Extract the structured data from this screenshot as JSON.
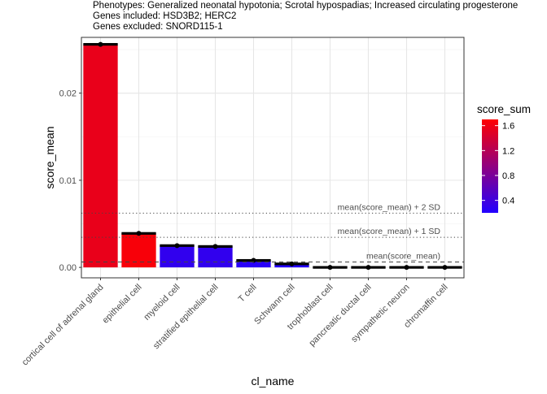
{
  "chart_data": {
    "type": "bar",
    "title_lines": [
      "Phenotypes: Generalized neonatal hypotonia; Scrotal hypospadias; Increased circulating progesterone",
      "Genes included: HSD3B2; HERC2",
      "Genes excluded: SNORD115-1"
    ],
    "xlabel": "cl_name",
    "ylabel": "score_mean",
    "ylim": [
      -0.0012,
      0.0264
    ],
    "yticks": [
      0.0,
      0.01,
      0.02
    ],
    "ytick_labels": [
      "0.00",
      "0.01",
      "0.02"
    ],
    "grid": true,
    "categories": [
      "cortical cell of adrenal gland",
      "epithelial cell",
      "myeloid cell",
      "stratified epithelial cell",
      "T cell",
      "Schwann cell",
      "trophoblast cell",
      "pancreatic ductal cell",
      "sympathetic neuron",
      "chromaffin cell"
    ],
    "values": [
      0.0256,
      0.0039,
      0.0025,
      0.0024,
      0.0008,
      0.0004,
      0.0,
      0.0,
      0.0,
      0.0
    ],
    "score_sum": [
      1.55,
      1.65,
      0.3,
      0.3,
      0.25,
      0.22,
      0.1,
      0.1,
      0.1,
      0.1
    ],
    "reference_lines": [
      {
        "label": "mean(score_mean)",
        "value": 0.00062,
        "style": "dashed"
      },
      {
        "label": "mean(score_mean) + 1 SD",
        "value": 0.00345,
        "style": "dotted"
      },
      {
        "label": "mean(score_mean) + 2 SD",
        "value": 0.00622,
        "style": "dotted"
      }
    ],
    "legend": {
      "title": "score_sum",
      "position": "right",
      "range": [
        0.2,
        1.7
      ],
      "ticks": [
        0.4,
        0.8,
        1.2,
        1.6
      ],
      "tick_labels": [
        "0.4",
        "0.8",
        "1.2",
        "1.6"
      ],
      "color_low": "#2200ff",
      "color_high": "#ff0000"
    }
  }
}
